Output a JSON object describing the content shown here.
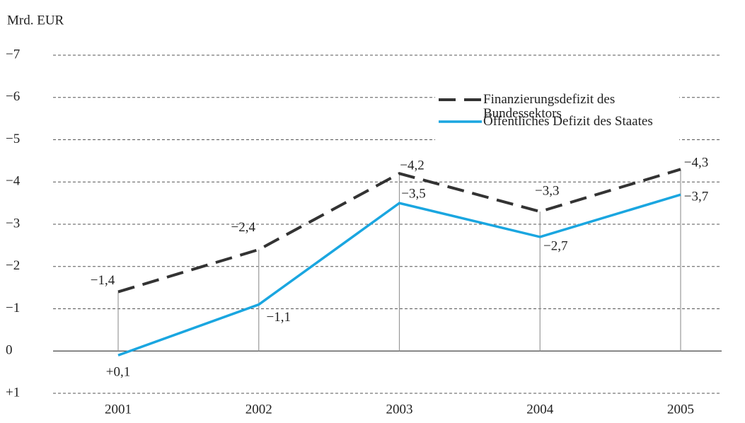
{
  "chart_data": {
    "type": "line",
    "y_axis_label": "Mrd. EUR",
    "categories": [
      "2001",
      "2002",
      "2003",
      "2004",
      "2005"
    ],
    "series": [
      {
        "name": "Finanzierungsdefizit des Bundessektors",
        "color": "#333333",
        "dash": true,
        "values": [
          -1.4,
          -2.4,
          -4.2,
          -3.3,
          -4.3
        ],
        "value_labels": [
          "−1,4",
          "−2,4",
          "−4,2",
          "−3,3",
          "−4,3"
        ]
      },
      {
        "name": "Öffentliches Defizit des Staates",
        "color": "#1aa6e0",
        "dash": false,
        "values": [
          0.1,
          -1.1,
          -3.5,
          -2.7,
          -3.7
        ],
        "value_labels": [
          "+0,1",
          "−1,1",
          "−3,5",
          "−2,7",
          "−3,7"
        ]
      }
    ],
    "ylim": [
      1,
      -7
    ],
    "yticks": [
      {
        "value": -7,
        "label": "−7"
      },
      {
        "value": -6,
        "label": "−6"
      },
      {
        "value": -5,
        "label": "−5"
      },
      {
        "value": -4,
        "label": "−4"
      },
      {
        "value": -3,
        "label": "−3"
      },
      {
        "value": -2,
        "label": "−2"
      },
      {
        "value": -1,
        "label": "−1"
      },
      0,
      {
        "value": 1,
        "label": "+1"
      }
    ],
    "grid": true,
    "legend": "top-right"
  }
}
